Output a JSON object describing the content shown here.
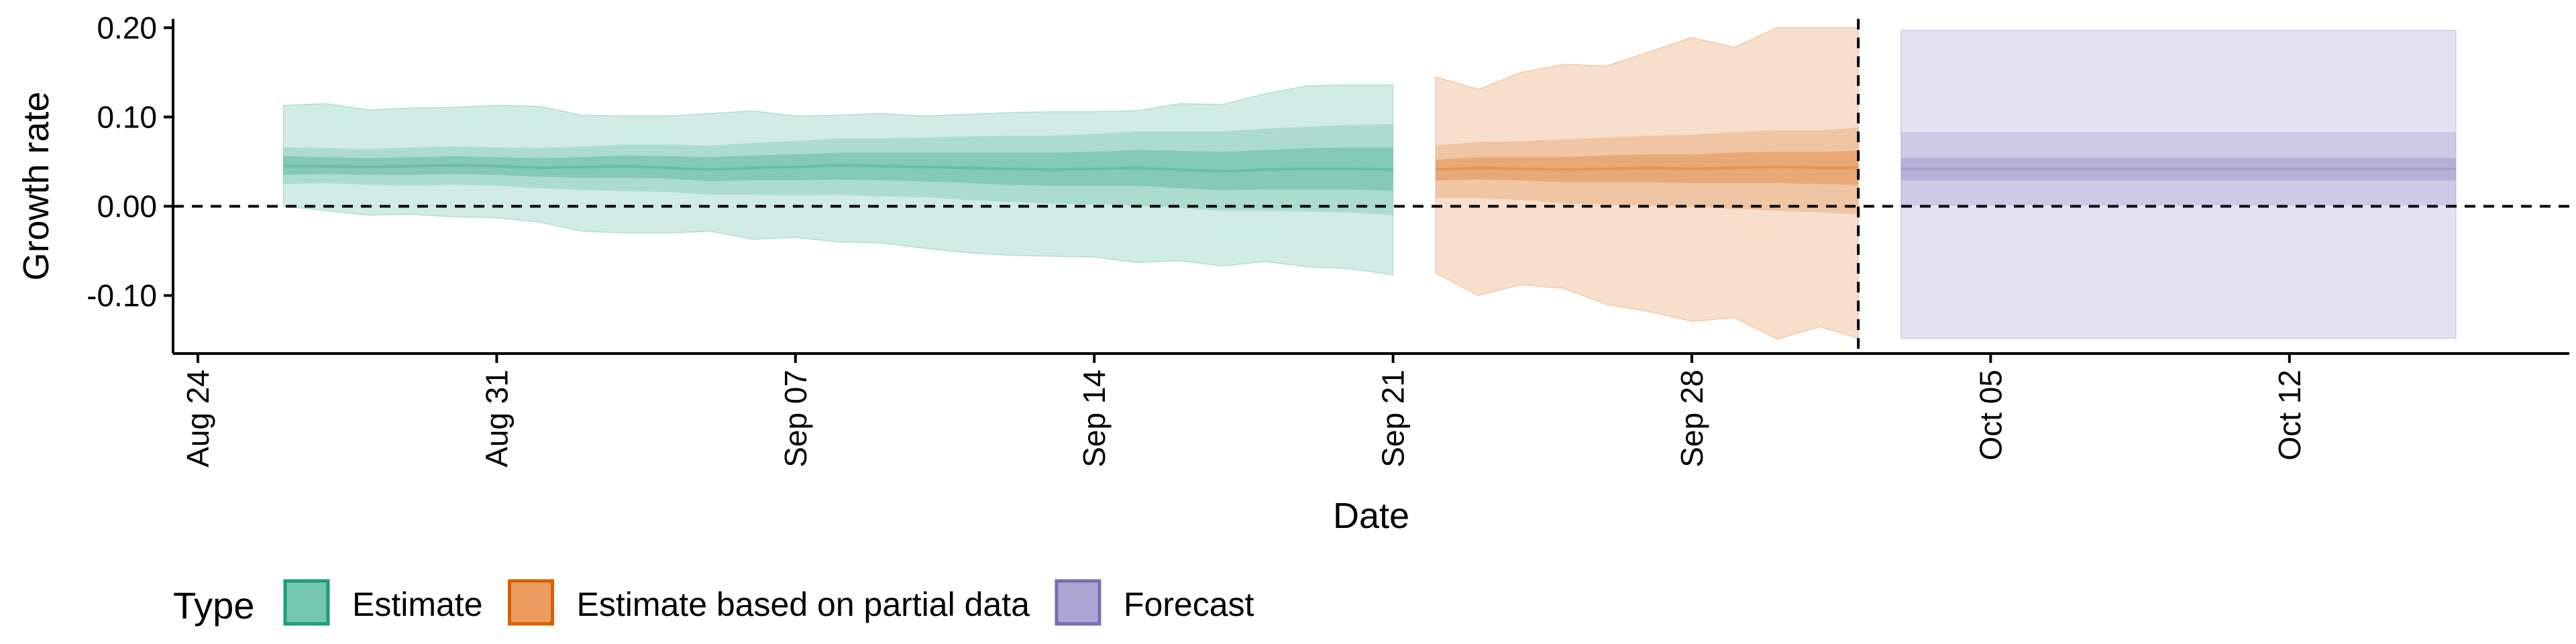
{
  "chart_data": {
    "type": "area",
    "title": "",
    "xlabel": "Date",
    "ylabel": "Growth rate",
    "ylim": [
      -0.165,
      0.21
    ],
    "yticks": [
      0.2,
      0.1,
      0.0,
      -0.1
    ],
    "ytick_labels": [
      "0.20",
      "0.10",
      "0.00",
      "-0.10"
    ],
    "x_start_day": 0,
    "x_end_day": 57.3,
    "xticks": [
      {
        "day": 0,
        "label": "Aug 24"
      },
      {
        "day": 7,
        "label": "Aug 31"
      },
      {
        "day": 14,
        "label": "Sep 07"
      },
      {
        "day": 21,
        "label": "Sep 14"
      },
      {
        "day": 28,
        "label": "Sep 21"
      },
      {
        "day": 35,
        "label": "Sep 28"
      },
      {
        "day": 42,
        "label": "Oct 05"
      },
      {
        "day": 49,
        "label": "Oct 12"
      }
    ],
    "reference_lines": {
      "horizontal_y": 0.0,
      "vertical_day": 38.9
    },
    "legend": {
      "title": "Type",
      "position": "bottom",
      "items": [
        {
          "label": "Estimate",
          "fill": "#76C7B0",
          "stroke": "#1B9E77"
        },
        {
          "label": "Estimate based on partial data",
          "fill": "#EC9C5E",
          "stroke": "#D95F02"
        },
        {
          "label": "Forecast",
          "fill": "#AAA6D2",
          "stroke": "#7570B3"
        }
      ]
    },
    "series": [
      {
        "name": "Estimate",
        "color": "#1B9E77",
        "x": [
          2,
          3,
          4,
          5,
          6,
          7,
          8,
          9,
          10,
          11,
          12,
          13,
          14,
          15,
          16,
          17,
          18,
          19,
          20,
          21,
          22,
          23,
          24,
          25,
          26,
          27,
          28
        ],
        "median": [
          0.045,
          0.045,
          0.044,
          0.045,
          0.046,
          0.045,
          0.043,
          0.044,
          0.045,
          0.043,
          0.041,
          0.043,
          0.044,
          0.046,
          0.045,
          0.044,
          0.043,
          0.042,
          0.041,
          0.042,
          0.043,
          0.041,
          0.039,
          0.041,
          0.042,
          0.042,
          0.041
        ],
        "inner": {
          "lower": [
            0.035,
            0.036,
            0.035,
            0.035,
            0.036,
            0.035,
            0.033,
            0.032,
            0.032,
            0.031,
            0.028,
            0.029,
            0.029,
            0.03,
            0.029,
            0.028,
            0.026,
            0.024,
            0.023,
            0.023,
            0.023,
            0.02,
            0.018,
            0.019,
            0.019,
            0.019,
            0.017
          ],
          "upper": [
            0.056,
            0.055,
            0.054,
            0.055,
            0.056,
            0.055,
            0.054,
            0.055,
            0.057,
            0.056,
            0.055,
            0.057,
            0.058,
            0.06,
            0.06,
            0.06,
            0.06,
            0.06,
            0.06,
            0.061,
            0.063,
            0.062,
            0.061,
            0.063,
            0.065,
            0.066,
            0.066
          ]
        },
        "mid": {
          "lower": [
            0.025,
            0.026,
            0.024,
            0.023,
            0.024,
            0.023,
            0.02,
            0.018,
            0.017,
            0.016,
            0.013,
            0.013,
            0.012,
            0.013,
            0.011,
            0.01,
            0.007,
            0.005,
            0.003,
            0.002,
            0.001,
            -0.002,
            -0.005,
            -0.005,
            -0.006,
            -0.007,
            -0.01
          ],
          "upper": [
            0.066,
            0.065,
            0.064,
            0.066,
            0.067,
            0.066,
            0.065,
            0.067,
            0.069,
            0.069,
            0.068,
            0.071,
            0.073,
            0.076,
            0.076,
            0.077,
            0.078,
            0.079,
            0.079,
            0.081,
            0.084,
            0.084,
            0.084,
            0.087,
            0.089,
            0.091,
            0.092
          ]
        },
        "outer": {
          "lower": [
            0.0,
            -0.005,
            -0.01,
            -0.009,
            -0.012,
            -0.013,
            -0.018,
            -0.028,
            -0.03,
            -0.03,
            -0.028,
            -0.037,
            -0.035,
            -0.04,
            -0.041,
            -0.047,
            -0.052,
            -0.055,
            -0.056,
            -0.057,
            -0.063,
            -0.061,
            -0.067,
            -0.062,
            -0.068,
            -0.07,
            -0.077
          ],
          "upper": [
            0.113,
            0.115,
            0.108,
            0.11,
            0.111,
            0.113,
            0.112,
            0.102,
            0.101,
            0.101,
            0.104,
            0.107,
            0.101,
            0.102,
            0.104,
            0.101,
            0.103,
            0.105,
            0.106,
            0.106,
            0.107,
            0.115,
            0.114,
            0.126,
            0.135,
            0.136,
            0.136
          ]
        }
      },
      {
        "name": "Estimate based on partial data",
        "color": "#D95F02",
        "x": [
          29,
          30,
          31,
          32,
          33,
          34,
          35,
          36,
          37,
          38,
          38.9
        ],
        "median": [
          0.041,
          0.043,
          0.042,
          0.041,
          0.042,
          0.043,
          0.042,
          0.043,
          0.044,
          0.043,
          0.043
        ],
        "inner": {
          "lower": [
            0.029,
            0.03,
            0.029,
            0.027,
            0.027,
            0.027,
            0.026,
            0.026,
            0.026,
            0.025,
            0.024
          ],
          "upper": [
            0.052,
            0.055,
            0.055,
            0.055,
            0.057,
            0.058,
            0.058,
            0.06,
            0.061,
            0.061,
            0.062
          ]
        },
        "mid": {
          "lower": [
            0.009,
            0.009,
            0.007,
            0.003,
            0.002,
            0.001,
            -0.001,
            -0.003,
            -0.005,
            -0.007,
            -0.009
          ],
          "upper": [
            0.068,
            0.072,
            0.073,
            0.075,
            0.077,
            0.079,
            0.08,
            0.083,
            0.085,
            0.085,
            0.088
          ]
        },
        "outer": {
          "lower": [
            -0.075,
            -0.1,
            -0.088,
            -0.092,
            -0.11,
            -0.118,
            -0.129,
            -0.125,
            -0.149,
            -0.135,
            -0.148
          ],
          "upper": [
            0.145,
            0.131,
            0.15,
            0.159,
            0.157,
            0.173,
            0.189,
            0.178,
            0.2,
            0.2,
            0.2
          ]
        }
      },
      {
        "name": "Forecast",
        "color": "#7570B3",
        "x": [
          39.9,
          52.9
        ],
        "median": [
          0.042,
          0.042
        ],
        "inner": {
          "lower": [
            0.029,
            0.029
          ],
          "upper": [
            0.054,
            0.054
          ]
        },
        "mid": {
          "lower": [
            0.001,
            0.001
          ],
          "upper": [
            0.083,
            0.083
          ]
        },
        "outer": {
          "lower": [
            -0.148,
            -0.148
          ],
          "upper": [
            0.197,
            0.197
          ]
        }
      }
    ]
  }
}
